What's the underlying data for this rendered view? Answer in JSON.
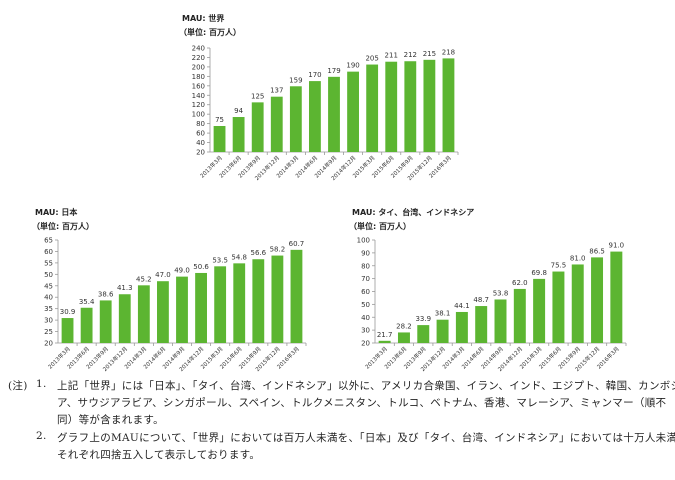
{
  "chart_data": [
    {
      "type": "bar",
      "title": "MAU: 世界",
      "unit": "（単位: 百万人）",
      "categories": [
        "2013年3月",
        "2013年6月",
        "2013年9月",
        "2013年12月",
        "2014年3月",
        "2014年6月",
        "2014年9月",
        "2014年12月",
        "2015年3月",
        "2015年6月",
        "2015年9月",
        "2015年12月",
        "2016年3月"
      ],
      "values": [
        75,
        94,
        125,
        137,
        159,
        170,
        179,
        190,
        205,
        211,
        212,
        215,
        218
      ],
      "labels": [
        "75",
        "94",
        "125",
        "137",
        "159",
        "170",
        "179",
        "190",
        "205",
        "211",
        "212",
        "215",
        "218"
      ],
      "ylim": [
        20,
        240
      ],
      "ystep": 20,
      "grid": false,
      "color": "#5cb531"
    },
    {
      "type": "bar",
      "title": "MAU: 日本",
      "unit": "（単位: 百万人）",
      "categories": [
        "2013年3月",
        "2013年6月",
        "2013年9月",
        "2013年12月",
        "2014年3月",
        "2014年6月",
        "2014年9月",
        "2014年12月",
        "2015年3月",
        "2015年6月",
        "2015年9月",
        "2015年12月",
        "2016年3月"
      ],
      "values": [
        30.9,
        35.4,
        38.6,
        41.3,
        45.2,
        47.0,
        49.0,
        50.6,
        53.5,
        54.8,
        56.6,
        58.2,
        60.7
      ],
      "labels": [
        "30.9",
        "35.4",
        "38.6",
        "41.3",
        "45.2",
        "47.0",
        "49.0",
        "50.6",
        "53.5",
        "54.8",
        "56.6",
        "58.2",
        "60.7"
      ],
      "ylim": [
        20,
        65
      ],
      "ystep": 5,
      "grid": false,
      "color": "#5cb531"
    },
    {
      "type": "bar",
      "title": "MAU: タイ、台湾、インドネシア",
      "unit": "（単位: 百万人）",
      "categories": [
        "2013年3月",
        "2013年6月",
        "2013年9月",
        "2013年12月",
        "2014年3月",
        "2014年6月",
        "2014年9月",
        "2014年12月",
        "2015年3月",
        "2015年6月",
        "2015年9月",
        "2015年12月",
        "2016年3月"
      ],
      "values": [
        21.7,
        28.2,
        33.9,
        38.1,
        44.1,
        48.7,
        53.8,
        62.0,
        69.8,
        75.5,
        81.0,
        86.5,
        91.0
      ],
      "labels": [
        "21.7",
        "28.2",
        "33.9",
        "38.1",
        "44.1",
        "48.7",
        "53.8",
        "62.0",
        "69.8",
        "75.5",
        "81.0",
        "86.5",
        "91.0"
      ],
      "ylim": [
        20,
        100
      ],
      "ystep": 10,
      "grid": false,
      "color": "#5cb531"
    }
  ],
  "notes": {
    "prefix": "(注)",
    "item1_num": "1.",
    "item1_line1": "上記「世界」には「日本」、「タイ、台湾、インドネシア」以外に、アメリカ合衆国、イラン、インド、エジプト、韓国、カンボジ",
    "item1_line2": "ア、サウジアラビア、シンガポール、スペイン、トルクメニスタン、トルコ、ベトナム、香港、マレーシア、ミャンマー（順不",
    "item1_line3": "同）等が含まれます。",
    "item2_num": "2.",
    "item2_line1": "グラフ上のMAUについて、「世界」においては百万人未満を、「日本」及び「タイ、台湾、インドネシア」においては十万人未満を",
    "item2_line2": "それぞれ四捨五入して表示しております。"
  }
}
